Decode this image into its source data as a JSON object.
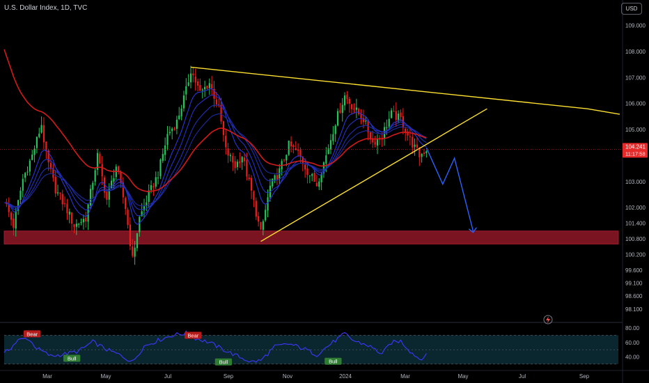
{
  "header": {
    "title": "U.S. Dollar Index, 1D, TVC",
    "currency_button": "USD"
  },
  "price_tag": {
    "value": "104.241",
    "countdown": "11:17:58"
  },
  "colors": {
    "background": "#000000",
    "up": "#22c55e",
    "down": "#ef1c1c",
    "trendline": "#ffe12e",
    "projection": "#2962ff",
    "support_zone": "#7a1420",
    "ema_long": "#d41a1a",
    "ribbon": "#2433c8",
    "rsi": "#3b36f0",
    "rsi_band": "#0b2a33"
  },
  "chart_data": [
    {
      "type": "candlestick",
      "title": "U.S. Dollar Index, 1D, TVC",
      "x_ticks": [
        "Mar",
        "May",
        "Jul",
        "Sep",
        "Nov",
        "2024",
        "Mar",
        "May",
        "Jul",
        "Sep"
      ],
      "y_ticks": [
        "109.000",
        "108.000",
        "107.000",
        "106.000",
        "105.000",
        "103.000",
        "102.000",
        "101.400",
        "100.800",
        "100.200",
        "99.600",
        "99.100",
        "98.600",
        "98.100"
      ],
      "ylim": [
        97.8,
        109.5
      ],
      "close_path": [
        {
          "t": 0,
          "v": 102.3
        },
        {
          "t": 4,
          "v": 101.3
        },
        {
          "t": 8,
          "v": 103.1
        },
        {
          "t": 12,
          "v": 104.0
        },
        {
          "t": 16,
          "v": 105.2
        },
        {
          "t": 18,
          "v": 104.0
        },
        {
          "t": 22,
          "v": 102.7
        },
        {
          "t": 27,
          "v": 101.9
        },
        {
          "t": 30,
          "v": 101.3
        },
        {
          "t": 35,
          "v": 101.6
        },
        {
          "t": 40,
          "v": 104.0
        },
        {
          "t": 44,
          "v": 102.3
        },
        {
          "t": 48,
          "v": 103.6
        },
        {
          "t": 52,
          "v": 102.0
        },
        {
          "t": 55,
          "v": 100.0
        },
        {
          "t": 58,
          "v": 101.6
        },
        {
          "t": 62,
          "v": 102.5
        },
        {
          "t": 66,
          "v": 103.3
        },
        {
          "t": 70,
          "v": 104.8
        },
        {
          "t": 74,
          "v": 105.3
        },
        {
          "t": 78,
          "v": 106.5
        },
        {
          "t": 80,
          "v": 107.3
        },
        {
          "t": 84,
          "v": 106.4
        },
        {
          "t": 88,
          "v": 106.8
        },
        {
          "t": 92,
          "v": 105.8
        },
        {
          "t": 95,
          "v": 104.2
        },
        {
          "t": 99,
          "v": 103.6
        },
        {
          "t": 102,
          "v": 104.0
        },
        {
          "t": 106,
          "v": 102.6
        },
        {
          "t": 110,
          "v": 101.0
        },
        {
          "t": 114,
          "v": 102.8
        },
        {
          "t": 118,
          "v": 103.4
        },
        {
          "t": 122,
          "v": 104.4
        },
        {
          "t": 126,
          "v": 104.1
        },
        {
          "t": 130,
          "v": 103.4
        },
        {
          "t": 134,
          "v": 102.9
        },
        {
          "t": 138,
          "v": 104.0
        },
        {
          "t": 142,
          "v": 105.3
        },
        {
          "t": 146,
          "v": 106.3
        },
        {
          "t": 150,
          "v": 105.8
        },
        {
          "t": 154,
          "v": 105.4
        },
        {
          "t": 158,
          "v": 104.5
        },
        {
          "t": 162,
          "v": 104.8
        },
        {
          "t": 166,
          "v": 105.6
        },
        {
          "t": 170,
          "v": 105.4
        },
        {
          "t": 174,
          "v": 104.6
        },
        {
          "t": 178,
          "v": 104.0
        },
        {
          "t": 181,
          "v": 104.24
        }
      ],
      "support_zone": [
        100.6,
        101.1
      ],
      "trendlines": [
        {
          "name": "upper",
          "from": [
            80,
            107.4
          ],
          "to": [
            250,
            105.8
          ]
        },
        {
          "name": "lower",
          "from": [
            110,
            100.7
          ],
          "to": [
            207,
            105.8
          ]
        }
      ],
      "projection_path": [
        [
          181,
          104.3
        ],
        [
          188,
          102.9
        ],
        [
          193,
          103.9
        ],
        [
          201,
          101.1
        ]
      ],
      "last_price": 104.241
    },
    {
      "type": "line",
      "name": "RSI",
      "y_ticks": [
        "80.00",
        "60.00",
        "40.00"
      ],
      "band": [
        30,
        70
      ],
      "ylim": [
        25,
        83
      ],
      "values_path": [
        {
          "t": 0,
          "v": 44
        },
        {
          "t": 6,
          "v": 63
        },
        {
          "t": 10,
          "v": 66
        },
        {
          "t": 14,
          "v": 52
        },
        {
          "t": 20,
          "v": 41
        },
        {
          "t": 26,
          "v": 44
        },
        {
          "t": 32,
          "v": 48
        },
        {
          "t": 38,
          "v": 61
        },
        {
          "t": 44,
          "v": 50
        },
        {
          "t": 50,
          "v": 42
        },
        {
          "t": 55,
          "v": 33
        },
        {
          "t": 60,
          "v": 55
        },
        {
          "t": 66,
          "v": 63
        },
        {
          "t": 72,
          "v": 70
        },
        {
          "t": 78,
          "v": 73
        },
        {
          "t": 82,
          "v": 66
        },
        {
          "t": 88,
          "v": 60
        },
        {
          "t": 94,
          "v": 50
        },
        {
          "t": 100,
          "v": 41
        },
        {
          "t": 106,
          "v": 33
        },
        {
          "t": 110,
          "v": 35
        },
        {
          "t": 116,
          "v": 54
        },
        {
          "t": 122,
          "v": 58
        },
        {
          "t": 128,
          "v": 52
        },
        {
          "t": 134,
          "v": 43
        },
        {
          "t": 140,
          "v": 58
        },
        {
          "t": 146,
          "v": 72
        },
        {
          "t": 150,
          "v": 62
        },
        {
          "t": 156,
          "v": 56
        },
        {
          "t": 162,
          "v": 44
        },
        {
          "t": 166,
          "v": 60
        },
        {
          "t": 170,
          "v": 62
        },
        {
          "t": 174,
          "v": 48
        },
        {
          "t": 178,
          "v": 37
        },
        {
          "t": 181,
          "v": 42
        }
      ],
      "labels": [
        {
          "text": "Bear",
          "t": 12,
          "v": 72,
          "color": "#b71c1c"
        },
        {
          "text": "Bull",
          "t": 29,
          "v": 38,
          "color": "#2e7d32"
        },
        {
          "text": "Bear",
          "t": 81,
          "v": 70,
          "color": "#b71c1c"
        },
        {
          "text": "Bull",
          "t": 94,
          "v": 33,
          "color": "#2e7d32"
        },
        {
          "text": "Bull",
          "t": 141,
          "v": 34,
          "color": "#2e7d32"
        }
      ]
    }
  ]
}
